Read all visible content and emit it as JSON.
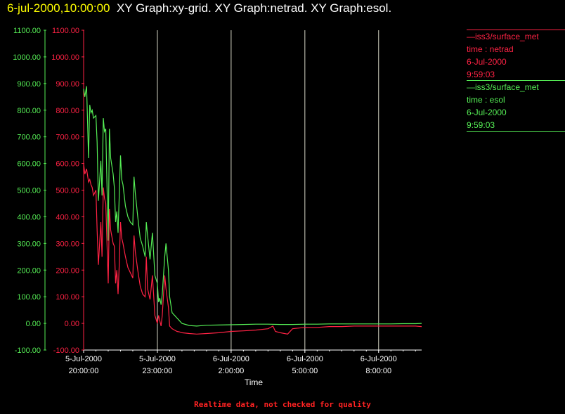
{
  "header": {
    "date": "6-jul-2000,10:00:00",
    "graphs": "XY Graph:xy-grid.  XY Graph:netrad.  XY Graph:esol."
  },
  "legend": [
    {
      "source": "—iss3/surface_met",
      "variable": "time : netrad",
      "date": "6-Jul-2000",
      "time": "9:59:03",
      "color": "#ff2244"
    },
    {
      "source": "—iss3/surface_met",
      "variable": "time : esol",
      "date": "6-Jul-2000",
      "time": "9:59:03",
      "color": "#55ee55"
    }
  ],
  "footer": "Realtime data, not checked for quality",
  "chart_data": {
    "type": "line",
    "title": "",
    "xlabel": "Time",
    "ylabel": "",
    "xlim": [
      20.0,
      33.75
    ],
    "ylim": [
      -100,
      1100
    ],
    "yticks": [
      -100,
      0,
      100,
      200,
      300,
      400,
      500,
      600,
      700,
      800,
      900,
      1000,
      1100
    ],
    "ytick_labels": [
      "-100.00",
      "0.00",
      "100.00",
      "200.00",
      "300.00",
      "400.00",
      "500.00",
      "600.00",
      "700.00",
      "800.00",
      "900.00",
      "1000.00",
      "1100.00"
    ],
    "xticks": [
      {
        "value": 20,
        "line1": "5-Jul-2000",
        "line2": "20:00:00"
      },
      {
        "value": 23,
        "line1": "5-Jul-2000",
        "line2": "23:00:00"
      },
      {
        "value": 26,
        "line1": "6-Jul-2000",
        "line2": "2:00:00"
      },
      {
        "value": 29,
        "line1": "6-Jul-2000",
        "line2": "5:00:00"
      },
      {
        "value": 32,
        "line1": "6-Jul-2000",
        "line2": "8:00:00"
      }
    ],
    "grid": "vertical",
    "series": [
      {
        "name": "time : esol",
        "color": "#55ee55",
        "x": [
          20.0,
          20.05,
          20.12,
          20.2,
          20.25,
          20.3,
          20.35,
          20.4,
          20.5,
          20.55,
          20.6,
          20.7,
          20.75,
          20.8,
          20.85,
          20.9,
          21.0,
          21.05,
          21.1,
          21.2,
          21.25,
          21.3,
          21.35,
          21.4,
          21.45,
          21.5,
          21.55,
          21.6,
          21.7,
          21.8,
          21.9,
          22.0,
          22.05,
          22.1,
          22.2,
          22.3,
          22.4,
          22.5,
          22.55,
          22.6,
          22.7,
          22.8,
          22.9,
          23.0,
          23.05,
          23.1,
          23.15,
          23.2,
          23.3,
          23.35,
          23.45,
          23.5,
          23.6,
          23.7,
          23.8,
          23.9,
          24.0,
          24.3,
          24.6,
          25.0,
          25.5,
          26.0,
          26.5,
          27.0,
          27.5,
          28.0,
          28.5,
          29.0,
          29.5,
          30.0,
          30.5,
          31.0,
          31.5,
          32.0,
          32.5,
          33.0,
          33.5,
          33.75
        ],
        "y": [
          880,
          850,
          890,
          620,
          820,
          790,
          800,
          770,
          780,
          680,
          460,
          610,
          480,
          770,
          720,
          730,
          310,
          730,
          620,
          560,
          510,
          380,
          420,
          340,
          480,
          630,
          540,
          520,
          440,
          400,
          380,
          370,
          550,
          490,
          400,
          320,
          290,
          250,
          380,
          330,
          240,
          340,
          180,
          150,
          80,
          95,
          70,
          110,
          250,
          300,
          200,
          100,
          40,
          30,
          20,
          10,
          0,
          -8,
          -10,
          -7,
          -6,
          -5,
          -4,
          -3,
          -3,
          -4,
          -4,
          -3,
          -3,
          -2,
          -2,
          -2,
          -2,
          -2,
          -2,
          -1,
          -1,
          0
        ]
      },
      {
        "name": "time : netrad",
        "color": "#ff2244",
        "x": [
          20.0,
          20.05,
          20.12,
          20.2,
          20.25,
          20.3,
          20.35,
          20.4,
          20.5,
          20.55,
          20.6,
          20.7,
          20.75,
          20.8,
          20.85,
          20.9,
          21.0,
          21.05,
          21.1,
          21.2,
          21.25,
          21.3,
          21.35,
          21.4,
          21.45,
          21.5,
          21.55,
          21.6,
          21.7,
          21.8,
          21.9,
          22.0,
          22.05,
          22.1,
          22.2,
          22.3,
          22.4,
          22.5,
          22.55,
          22.6,
          22.7,
          22.8,
          22.9,
          23.0,
          23.05,
          23.1,
          23.15,
          23.2,
          23.3,
          23.35,
          23.45,
          23.5,
          23.6,
          23.7,
          23.8,
          23.9,
          24.0,
          24.3,
          24.6,
          25.0,
          25.5,
          26.0,
          26.5,
          27.0,
          27.5,
          27.7,
          27.8,
          28.0,
          28.3,
          28.5,
          29.0,
          29.5,
          30.0,
          30.5,
          31.0,
          31.5,
          32.0,
          32.5,
          33.0,
          33.5,
          33.75
        ],
        "y": [
          600,
          560,
          580,
          530,
          540,
          520,
          510,
          480,
          500,
          350,
          220,
          380,
          250,
          510,
          470,
          450,
          150,
          430,
          350,
          300,
          290,
          150,
          200,
          110,
          220,
          380,
          320,
          300,
          250,
          210,
          190,
          170,
          330,
          270,
          200,
          140,
          110,
          100,
          250,
          130,
          90,
          180,
          30,
          0,
          30,
          10,
          -10,
          30,
          180,
          130,
          60,
          -10,
          -20,
          -25,
          -30,
          -32,
          -35,
          -38,
          -40,
          -38,
          -35,
          -30,
          -28,
          -25,
          -20,
          -10,
          -30,
          -35,
          -40,
          -20,
          -15,
          -15,
          -12,
          -12,
          -10,
          -10,
          -10,
          -10,
          -10,
          -10,
          -12
        ]
      }
    ]
  }
}
